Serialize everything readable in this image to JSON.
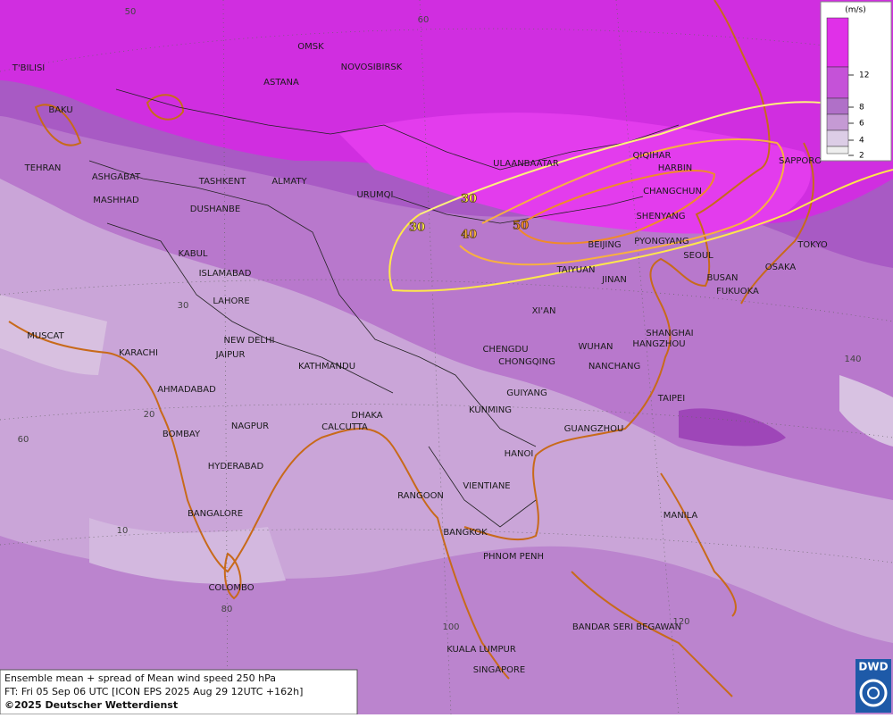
{
  "legend": {
    "unit": "(m/s)",
    "ticks": [
      "12",
      "8",
      "6",
      "4",
      "2"
    ]
  },
  "cities": [
    "T'BILISI",
    "BAKU",
    "OMSK",
    "NOVOSIBIRSK",
    "ASTANA",
    "TEHRAN",
    "ASHGABAT",
    "MASHHAD",
    "TASHKENT",
    "ALMATY",
    "DUSHANBE",
    "URUMQI",
    "ULAANBAATAR",
    "QIQIHAR",
    "HARBIN",
    "CHANGCHUN",
    "SHENYANG",
    "SAPPORO",
    "BEIJING",
    "PYONGYANG",
    "SEOUL",
    "TOKYO",
    "OSAKA",
    "BUSAN",
    "FUKUOKA",
    "TAIYUAN",
    "JINAN",
    "KABUL",
    "ISLAMABAD",
    "LAHORE",
    "XI'AN",
    "SHANGHAI",
    "HANGZHOU",
    "NEW DELHI",
    "MUSCAT",
    "KARACHI",
    "JAIPUR",
    "KATHMANDU",
    "CHENGDU",
    "CHONGQING",
    "WUHAN",
    "NANCHANG",
    "AHMADABAD",
    "GUIYANG",
    "TAIPEI",
    "KUNMING",
    "DHAKA",
    "CALCUTTA",
    "NAGPUR",
    "BOMBAY",
    "GUANGZHOU",
    "HANOI",
    "HYDERABAD",
    "RANGOON",
    "VIENTIANE",
    "BANGALORE",
    "MANILA",
    "BANGKOK",
    "PHNOM PENH",
    "COLOMBO",
    "BANDAR SERI BEGAWAN",
    "KUALA LUMPUR",
    "SINGAPORE"
  ],
  "grid_labels": [
    "50",
    "60",
    "30",
    "20",
    "10",
    "60",
    "80",
    "100",
    "120",
    "140"
  ],
  "contour_labels": [
    "30",
    "30",
    "40",
    "50"
  ],
  "footer": {
    "title": "Ensemble mean + spread of Mean wind speed 250 hPa",
    "forecast": "FT: Fri 05 Sep 06 UTC [ICON EPS 2025 Aug 29 12UTC +162h]",
    "copyright": "©2025 Deutscher Wetterdienst"
  },
  "logo": "DWD"
}
